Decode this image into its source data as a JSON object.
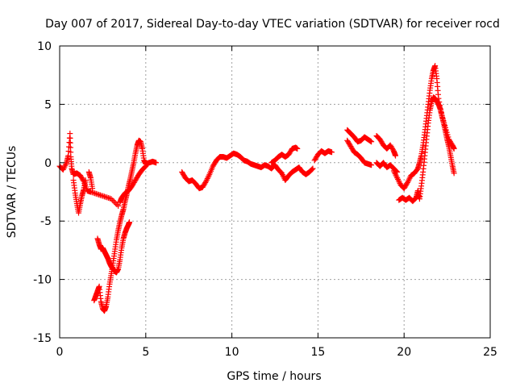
{
  "chart_data": {
    "type": "scatter",
    "title": "Day 007 of 2017, Sidereal Day-to-day VTEC variation (SDTVAR) for receiver rocd",
    "xlabel": "GPS time / hours",
    "ylabel": "SDTVAR / TECUs",
    "xlim": [
      0,
      25
    ],
    "ylim": [
      -15,
      10
    ],
    "xticks": [
      0,
      5,
      10,
      15,
      20,
      25
    ],
    "yticks": [
      -15,
      -10,
      -5,
      0,
      5,
      10
    ],
    "x_tick_labels": [
      "0",
      "5",
      "10",
      "15",
      "20",
      "25"
    ],
    "y_tick_labels": [
      "-15",
      "-10",
      "-5",
      "0",
      "5",
      "10"
    ],
    "grid": true,
    "legend": "none",
    "marker": "plus",
    "color": "#ff0000",
    "segments": [
      [
        [
          0.0,
          -0.3
        ],
        [
          0.2,
          -0.6
        ],
        [
          0.4,
          0.0
        ],
        [
          0.5,
          0.6
        ],
        [
          0.6,
          2.5
        ],
        [
          0.65,
          0.5
        ],
        [
          0.7,
          -0.5
        ],
        [
          0.8,
          -1.0
        ],
        [
          1.0,
          -0.9
        ],
        [
          1.2,
          -1.1
        ],
        [
          1.4,
          -1.6
        ],
        [
          1.6,
          -2.4
        ],
        [
          1.8,
          -2.5
        ],
        [
          2.2,
          -2.7
        ],
        [
          2.6,
          -2.9
        ],
        [
          3.0,
          -3.1
        ],
        [
          3.4,
          -3.7
        ]
      ],
      [
        [
          0.8,
          -1.5
        ],
        [
          0.9,
          -2.6
        ],
        [
          1.0,
          -3.5
        ],
        [
          1.1,
          -4.3
        ],
        [
          1.2,
          -3.5
        ],
        [
          1.3,
          -2.8
        ],
        [
          1.4,
          -2.3
        ],
        [
          1.5,
          -1.5
        ]
      ],
      [
        [
          1.7,
          -0.8
        ],
        [
          1.8,
          -1.3
        ],
        [
          1.9,
          -2.2
        ]
      ],
      [
        [
          2.0,
          -11.8
        ],
        [
          2.1,
          -11.4
        ],
        [
          2.2,
          -11.0
        ],
        [
          2.3,
          -10.6
        ],
        [
          2.4,
          -11.9
        ],
        [
          2.5,
          -12.5
        ],
        [
          2.6,
          -12.7
        ],
        [
          2.7,
          -12.3
        ],
        [
          2.8,
          -11.5
        ],
        [
          2.9,
          -10.4
        ],
        [
          3.0,
          -9.5
        ],
        [
          3.1,
          -8.6
        ],
        [
          3.2,
          -7.6
        ],
        [
          3.3,
          -6.6
        ],
        [
          3.4,
          -5.8
        ],
        [
          3.5,
          -5.1
        ],
        [
          3.6,
          -4.5
        ],
        [
          3.7,
          -4.0
        ],
        [
          3.8,
          -3.3
        ],
        [
          3.9,
          -2.7
        ],
        [
          4.0,
          -2.0
        ],
        [
          4.1,
          -1.4
        ],
        [
          4.2,
          -0.7
        ],
        [
          4.3,
          0.0
        ],
        [
          4.4,
          0.8
        ],
        [
          4.5,
          1.5
        ],
        [
          4.6,
          1.9
        ],
        [
          4.7,
          1.8
        ],
        [
          4.8,
          1.2
        ],
        [
          4.9,
          0.2
        ],
        [
          5.0,
          -0.1
        ],
        [
          5.2,
          0.0
        ],
        [
          5.4,
          0.1
        ],
        [
          5.6,
          0.0
        ]
      ],
      [
        [
          2.2,
          -6.5
        ],
        [
          2.3,
          -7.0
        ],
        [
          2.4,
          -7.4
        ],
        [
          2.5,
          -7.3
        ],
        [
          2.6,
          -7.6
        ],
        [
          2.7,
          -7.9
        ],
        [
          2.8,
          -8.2
        ],
        [
          2.9,
          -8.6
        ],
        [
          3.0,
          -8.9
        ],
        [
          3.1,
          -9.1
        ],
        [
          3.2,
          -9.3
        ],
        [
          3.3,
          -9.4
        ],
        [
          3.4,
          -9.1
        ],
        [
          3.5,
          -8.3
        ],
        [
          3.6,
          -7.3
        ],
        [
          3.7,
          -6.5
        ],
        [
          3.8,
          -6.0
        ],
        [
          3.9,
          -5.6
        ],
        [
          4.0,
          -5.3
        ],
        [
          4.05,
          -5.1
        ]
      ],
      [
        [
          3.5,
          -3.4
        ],
        [
          3.6,
          -3.0
        ],
        [
          3.8,
          -2.6
        ],
        [
          4.0,
          -2.4
        ],
        [
          4.2,
          -2.0
        ],
        [
          4.4,
          -1.5
        ],
        [
          4.6,
          -1.0
        ],
        [
          4.8,
          -0.6
        ],
        [
          5.0,
          -0.3
        ]
      ],
      [
        [
          7.1,
          -0.8
        ],
        [
          7.3,
          -1.3
        ],
        [
          7.5,
          -1.6
        ],
        [
          7.7,
          -1.5
        ],
        [
          7.9,
          -1.8
        ],
        [
          8.1,
          -2.2
        ],
        [
          8.3,
          -2.1
        ],
        [
          8.5,
          -1.6
        ],
        [
          8.7,
          -1.0
        ],
        [
          8.9,
          -0.3
        ],
        [
          9.1,
          0.2
        ],
        [
          9.3,
          0.5
        ],
        [
          9.5,
          0.5
        ],
        [
          9.7,
          0.4
        ],
        [
          9.9,
          0.6
        ],
        [
          10.1,
          0.8
        ],
        [
          10.3,
          0.7
        ],
        [
          10.5,
          0.5
        ],
        [
          10.7,
          0.2
        ],
        [
          10.9,
          0.1
        ],
        [
          11.1,
          -0.1
        ],
        [
          11.3,
          -0.2
        ],
        [
          11.5,
          -0.3
        ],
        [
          11.7,
          -0.4
        ],
        [
          11.9,
          -0.2
        ],
        [
          12.1,
          -0.3
        ],
        [
          12.3,
          -0.5
        ],
        [
          12.5,
          -0.2
        ],
        [
          12.7,
          -0.6
        ],
        [
          12.9,
          -0.9
        ],
        [
          13.1,
          -1.5
        ],
        [
          13.3,
          -1.1
        ],
        [
          13.5,
          -0.8
        ],
        [
          13.7,
          -0.6
        ],
        [
          13.9,
          -0.4
        ],
        [
          14.1,
          -0.8
        ],
        [
          14.3,
          -1.0
        ],
        [
          14.5,
          -0.8
        ],
        [
          14.7,
          -0.5
        ]
      ],
      [
        [
          12.3,
          0.0
        ],
        [
          12.5,
          0.2
        ],
        [
          12.7,
          0.5
        ],
        [
          12.9,
          0.7
        ],
        [
          13.1,
          0.5
        ],
        [
          13.3,
          0.7
        ],
        [
          13.5,
          1.2
        ],
        [
          13.7,
          1.3
        ],
        [
          13.8,
          1.2
        ]
      ],
      [
        [
          14.8,
          0.2
        ],
        [
          15.0,
          0.7
        ],
        [
          15.2,
          1.0
        ],
        [
          15.4,
          0.8
        ],
        [
          15.6,
          1.0
        ],
        [
          15.8,
          0.9
        ]
      ],
      [
        [
          16.7,
          2.8
        ],
        [
          16.9,
          2.5
        ],
        [
          17.1,
          2.2
        ],
        [
          17.3,
          1.8
        ],
        [
          17.5,
          1.9
        ],
        [
          17.7,
          2.2
        ],
        [
          17.9,
          2.0
        ],
        [
          18.1,
          1.8
        ]
      ],
      [
        [
          16.7,
          1.9
        ],
        [
          16.9,
          1.4
        ],
        [
          17.1,
          0.9
        ],
        [
          17.3,
          0.7
        ],
        [
          17.5,
          0.4
        ],
        [
          17.7,
          0.0
        ],
        [
          17.9,
          -0.1
        ],
        [
          18.1,
          -0.2
        ]
      ],
      [
        [
          18.4,
          2.3
        ],
        [
          18.6,
          2.0
        ],
        [
          18.8,
          1.5
        ],
        [
          19.0,
          1.2
        ],
        [
          19.2,
          1.5
        ],
        [
          19.4,
          1.0
        ],
        [
          19.5,
          0.6
        ]
      ],
      [
        [
          18.4,
          0.0
        ],
        [
          18.6,
          -0.3
        ],
        [
          18.8,
          0.0
        ],
        [
          19.0,
          -0.4
        ],
        [
          19.2,
          -0.2
        ],
        [
          19.4,
          -0.5
        ],
        [
          19.6,
          -0.8
        ]
      ],
      [
        [
          19.4,
          -0.7
        ],
        [
          19.6,
          -1.3
        ],
        [
          19.8,
          -1.9
        ],
        [
          20.0,
          -2.2
        ],
        [
          20.2,
          -1.7
        ],
        [
          20.4,
          -1.1
        ],
        [
          20.6,
          -0.9
        ],
        [
          20.8,
          -0.5
        ],
        [
          20.9,
          0.0
        ],
        [
          21.0,
          0.6
        ],
        [
          21.1,
          1.5
        ],
        [
          21.2,
          2.6
        ],
        [
          21.3,
          3.8
        ],
        [
          21.4,
          5.0
        ],
        [
          21.5,
          6.2
        ],
        [
          21.6,
          7.2
        ],
        [
          21.7,
          7.9
        ],
        [
          21.8,
          8.3
        ],
        [
          21.9,
          7.2
        ],
        [
          22.0,
          5.5
        ],
        [
          22.2,
          4.0
        ],
        [
          22.4,
          3.0
        ],
        [
          22.6,
          2.0
        ],
        [
          22.8,
          1.5
        ],
        [
          22.9,
          1.2
        ]
      ],
      [
        [
          19.7,
          -3.2
        ],
        [
          19.9,
          -3.0
        ],
        [
          20.1,
          -3.2
        ],
        [
          20.3,
          -3.0
        ],
        [
          20.5,
          -3.3
        ],
        [
          20.7,
          -3.0
        ],
        [
          20.8,
          -2.4
        ],
        [
          20.9,
          -3.1
        ],
        [
          21.0,
          -2.0
        ],
        [
          21.1,
          -0.8
        ],
        [
          21.2,
          0.6
        ],
        [
          21.3,
          2.0
        ],
        [
          21.4,
          3.4
        ],
        [
          21.5,
          4.5
        ],
        [
          21.6,
          5.2
        ],
        [
          21.7,
          5.6
        ],
        [
          21.8,
          5.5
        ],
        [
          21.9,
          5.3
        ],
        [
          22.0,
          5.0
        ],
        [
          22.1,
          4.6
        ],
        [
          22.2,
          4.0
        ],
        [
          22.3,
          3.4
        ],
        [
          22.4,
          2.7
        ],
        [
          22.5,
          2.0
        ],
        [
          22.6,
          1.4
        ],
        [
          22.7,
          0.6
        ],
        [
          22.8,
          -0.2
        ],
        [
          22.9,
          -0.9
        ]
      ]
    ]
  }
}
